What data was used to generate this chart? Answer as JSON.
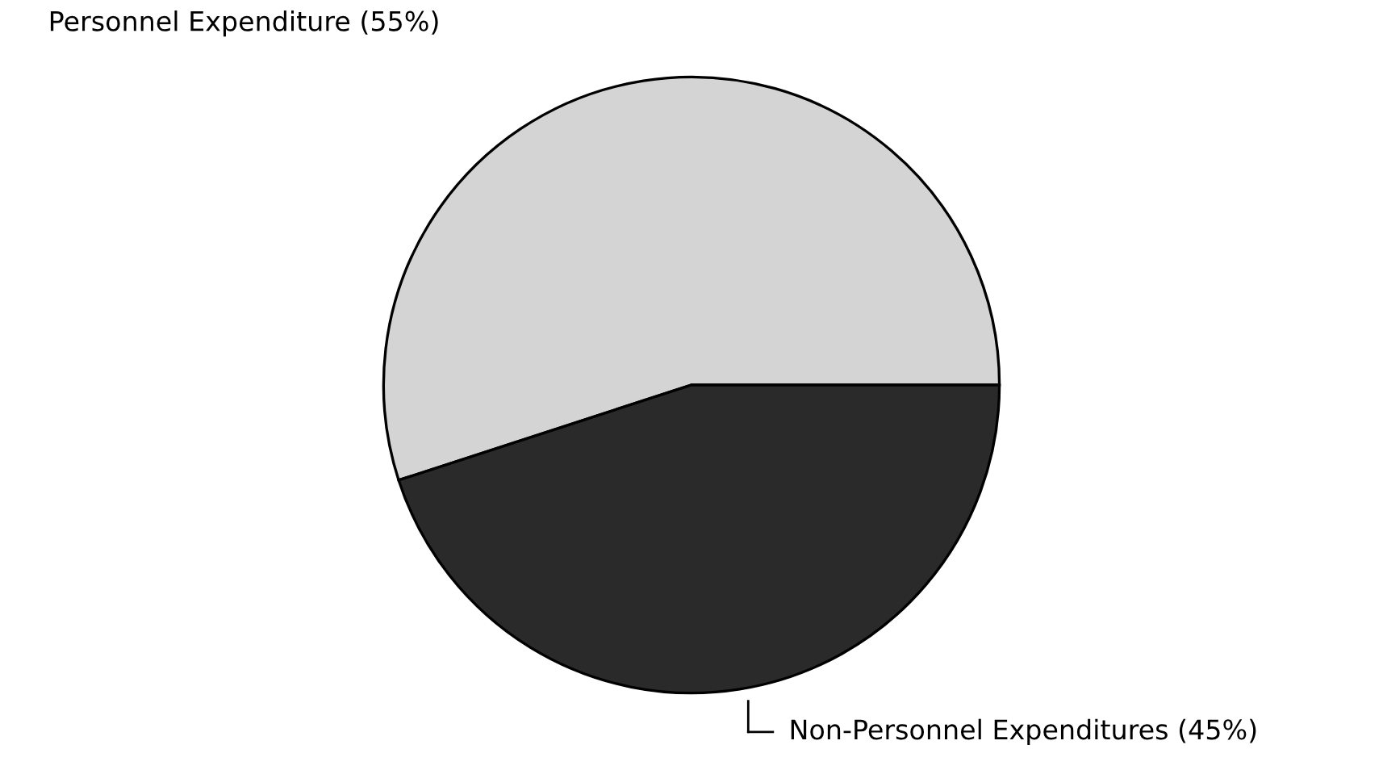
{
  "chart_data": {
    "type": "pie",
    "categories": [
      "Personnel Expenditure",
      "Non-Personnel Expenditures"
    ],
    "values": [
      55,
      45
    ],
    "value_labels": [
      "(55%)",
      "(45%)"
    ],
    "colors": [
      "#d4d4d4",
      "#2a2a2a"
    ]
  }
}
